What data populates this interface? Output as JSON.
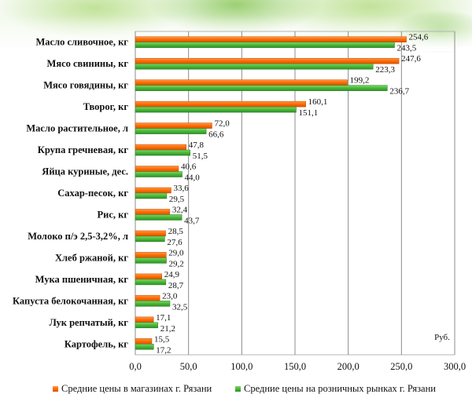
{
  "colors": {
    "shops": "#ff6a00",
    "markets": "#49b83a",
    "grid": "#8c8c8c"
  },
  "chart_data": {
    "type": "bar",
    "orientation": "horizontal",
    "unit": "Руб.",
    "categories": [
      "Масло сливочное, кг",
      "Мясо свинины, кг",
      "Мясо говядины, кг",
      "Творог, кг",
      "Масло растительное, л",
      "Крупа гречневая, кг",
      "Яйца куриные, дес.",
      "Сахар-песок, кг",
      "Рис, кг",
      "Молоко п/э 2,5-3,2%, л",
      "Хлеб ржаной, кг",
      "Мука пшеничная, кг",
      "Капуста белокочанная, кг",
      "Лук репчатый, кг",
      "Картофель, кг"
    ],
    "series": [
      {
        "name": "Средние цены в магазинах г. Рязани",
        "values": [
          254.6,
          247.6,
          199.2,
          160.1,
          72.0,
          47.8,
          40.6,
          33.6,
          32.4,
          28.5,
          29.0,
          24.9,
          23.0,
          17.1,
          15.5
        ],
        "labels": [
          "254,6",
          "247,6",
          "199,2",
          "160,1",
          "72,0",
          "47,8",
          "40,6",
          "33,6",
          "32,4",
          "28,5",
          "29,0",
          "24,9",
          "23,0",
          "17,1",
          "15,5"
        ]
      },
      {
        "name": "Средние цены на розничных рынках г. Рязани",
        "values": [
          243.5,
          223.3,
          236.7,
          151.1,
          66.6,
          51.5,
          44.0,
          29.5,
          43.7,
          27.6,
          29.2,
          28.7,
          32.5,
          21.2,
          17.2
        ],
        "labels": [
          "243,5",
          "223,3",
          "236,7",
          "151,1",
          "66,6",
          "51,5",
          "44,0",
          "29,5",
          "43,7",
          "27,6",
          "29,2",
          "28,7",
          "32,5",
          "21,2",
          "17,2"
        ]
      }
    ],
    "xlim": [
      0,
      300
    ],
    "xticks": [
      0,
      50,
      100,
      150,
      200,
      250,
      300
    ],
    "xtick_labels": [
      "0,0",
      "50,0",
      "100,0",
      "150,0",
      "200,0",
      "250,0",
      "300,0"
    ],
    "grid": true,
    "legend_position": "bottom"
  }
}
